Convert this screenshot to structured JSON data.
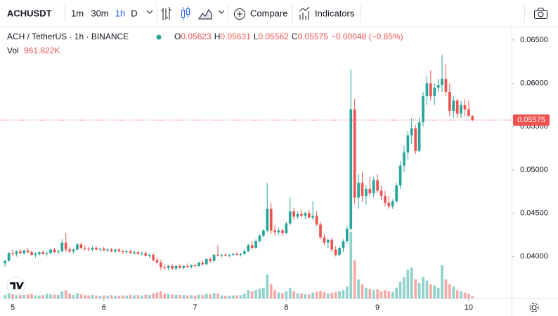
{
  "toolbar": {
    "symbol": "ACHUSDT",
    "intervals": [
      "1m",
      "30m",
      "1h",
      "D"
    ],
    "active_interval": "1h",
    "compare": "Compare",
    "indicators": "Indicators"
  },
  "legend": {
    "title": "ACH / TetherUS · 1h · BINANCE",
    "ohlc": [
      {
        "key": "O",
        "value": "0.05623"
      },
      {
        "key": "H",
        "value": "0.05631"
      },
      {
        "key": "L",
        "value": "0.05562"
      },
      {
        "key": "C",
        "value": "0.05575"
      }
    ],
    "change": "−0.00048 (−0.85%)",
    "vol_label": "Vol",
    "vol_value": "961.822K"
  },
  "last_price_label": "0.05575",
  "chart_data": {
    "type": "candlestick",
    "up_color": "#26a69a",
    "down_color": "#ef5350",
    "grid": false,
    "ylim": [
      0.03516,
      0.06645
    ],
    "yticks": [
      {
        "value": 0.04,
        "label": "0.04000"
      },
      {
        "value": 0.045,
        "label": "0.04500"
      },
      {
        "value": 0.05,
        "label": "0.05000"
      },
      {
        "value": 0.055,
        "label": "0.05500"
      },
      {
        "value": 0.06,
        "label": "0.06000"
      },
      {
        "value": 0.065,
        "label": "0.06500"
      }
    ],
    "xlim": [
      -1.33,
      133.3
    ],
    "xticks": [
      {
        "value": 2,
        "label": "5"
      },
      {
        "value": 26,
        "label": "6"
      },
      {
        "value": 50,
        "label": "7"
      },
      {
        "value": 74,
        "label": "8"
      },
      {
        "value": 98,
        "label": "9"
      },
      {
        "value": 122,
        "label": "10"
      }
    ],
    "candles": [
      [
        0.0392,
        0.0396,
        0.0388,
        0.0395,
        1500000
      ],
      [
        0.0395,
        0.0405,
        0.0394,
        0.0404,
        2200000
      ],
      [
        0.0404,
        0.0408,
        0.0401,
        0.0403,
        1800000
      ],
      [
        0.0403,
        0.0407,
        0.04,
        0.0406,
        1600000
      ],
      [
        0.0406,
        0.0409,
        0.0403,
        0.0404,
        1400000
      ],
      [
        0.0404,
        0.0408,
        0.0402,
        0.0407,
        1500000
      ],
      [
        0.0407,
        0.041,
        0.0404,
        0.0405,
        1700000
      ],
      [
        0.0405,
        0.0407,
        0.0401,
        0.0402,
        1900000
      ],
      [
        0.0402,
        0.0405,
        0.0399,
        0.0403,
        1300000
      ],
      [
        0.0403,
        0.0406,
        0.0401,
        0.0405,
        1200000
      ],
      [
        0.0405,
        0.0407,
        0.0402,
        0.0403,
        1400000
      ],
      [
        0.0403,
        0.0406,
        0.04,
        0.0404,
        2000000
      ],
      [
        0.0404,
        0.0409,
        0.0403,
        0.0408,
        1800000
      ],
      [
        0.0408,
        0.041,
        0.0404,
        0.0405,
        1600000
      ],
      [
        0.0405,
        0.0408,
        0.0403,
        0.0406,
        1500000
      ],
      [
        0.0406,
        0.042,
        0.0405,
        0.0416,
        3000000
      ],
      [
        0.0416,
        0.0427,
        0.0405,
        0.0408,
        3500000
      ],
      [
        0.0408,
        0.0411,
        0.0404,
        0.0406,
        2000000
      ],
      [
        0.0406,
        0.0409,
        0.0403,
        0.0408,
        1500000
      ],
      [
        0.0408,
        0.0416,
        0.0407,
        0.0414,
        2200000
      ],
      [
        0.0414,
        0.0416,
        0.0408,
        0.041,
        1800000
      ],
      [
        0.041,
        0.0413,
        0.0407,
        0.0409,
        1400000
      ],
      [
        0.0409,
        0.0411,
        0.0406,
        0.0408,
        1300000
      ],
      [
        0.0408,
        0.0412,
        0.0406,
        0.041,
        1500000
      ],
      [
        0.041,
        0.0412,
        0.0407,
        0.0408,
        1200000
      ],
      [
        0.0408,
        0.041,
        0.0405,
        0.0409,
        1100000
      ],
      [
        0.0409,
        0.0411,
        0.0406,
        0.0407,
        1300000
      ],
      [
        0.0407,
        0.041,
        0.0405,
        0.0408,
        1200000
      ],
      [
        0.0408,
        0.041,
        0.0405,
        0.0406,
        1400000
      ],
      [
        0.0406,
        0.0409,
        0.0404,
        0.0408,
        1200000
      ],
      [
        0.0408,
        0.041,
        0.0405,
        0.0406,
        1100000
      ],
      [
        0.0406,
        0.0408,
        0.0403,
        0.0405,
        1300000
      ],
      [
        0.0405,
        0.0408,
        0.0403,
        0.0406,
        1200000
      ],
      [
        0.0406,
        0.0408,
        0.0403,
        0.0404,
        1500000
      ],
      [
        0.0404,
        0.0407,
        0.0402,
        0.0405,
        1300000
      ],
      [
        0.0405,
        0.0407,
        0.0402,
        0.0403,
        1400000
      ],
      [
        0.0403,
        0.0406,
        0.0401,
        0.0404,
        1200000
      ],
      [
        0.0404,
        0.0406,
        0.04,
        0.0401,
        1600000
      ],
      [
        0.0401,
        0.0404,
        0.0398,
        0.0402,
        1500000
      ],
      [
        0.0402,
        0.0404,
        0.0394,
        0.0396,
        2200000
      ],
      [
        0.0396,
        0.0399,
        0.0392,
        0.0393,
        2500000
      ],
      [
        0.0393,
        0.0396,
        0.0384,
        0.0388,
        3000000
      ],
      [
        0.0388,
        0.0391,
        0.0385,
        0.0387,
        2000000
      ],
      [
        0.0387,
        0.039,
        0.0384,
        0.0389,
        1800000
      ],
      [
        0.0389,
        0.0391,
        0.0385,
        0.0386,
        1700000
      ],
      [
        0.0386,
        0.039,
        0.0384,
        0.0389,
        1600000
      ],
      [
        0.0389,
        0.0391,
        0.0386,
        0.0387,
        1500000
      ],
      [
        0.0387,
        0.039,
        0.0385,
        0.0389,
        1400000
      ],
      [
        0.0389,
        0.0392,
        0.0387,
        0.0388,
        1300000
      ],
      [
        0.0388,
        0.0391,
        0.0386,
        0.039,
        1400000
      ],
      [
        0.039,
        0.0392,
        0.0387,
        0.0389,
        1200000
      ],
      [
        0.0389,
        0.0394,
        0.0388,
        0.0393,
        1600000
      ],
      [
        0.0393,
        0.0395,
        0.0389,
        0.0391,
        1500000
      ],
      [
        0.0391,
        0.0398,
        0.039,
        0.0397,
        2000000
      ],
      [
        0.0397,
        0.0399,
        0.0393,
        0.0395,
        1700000
      ],
      [
        0.0395,
        0.0403,
        0.0394,
        0.0402,
        2300000
      ],
      [
        0.0402,
        0.0413,
        0.04,
        0.0401,
        2000000
      ],
      [
        0.0401,
        0.0403,
        0.0399,
        0.0402,
        1300000
      ],
      [
        0.0402,
        0.0404,
        0.04,
        0.0401,
        1200000
      ],
      [
        0.0401,
        0.0403,
        0.0399,
        0.0402,
        1100000
      ],
      [
        0.0402,
        0.0404,
        0.04,
        0.0403,
        1200000
      ],
      [
        0.0403,
        0.0405,
        0.0401,
        0.0402,
        1300000
      ],
      [
        0.0402,
        0.0404,
        0.04,
        0.0403,
        1400000
      ],
      [
        0.0403,
        0.0408,
        0.0402,
        0.0406,
        2000000
      ],
      [
        0.0406,
        0.0415,
        0.0405,
        0.0413,
        3500000
      ],
      [
        0.0413,
        0.0418,
        0.0408,
        0.041,
        3000000
      ],
      [
        0.041,
        0.042,
        0.0409,
        0.0418,
        3500000
      ],
      [
        0.0418,
        0.0426,
        0.0416,
        0.0424,
        4000000
      ],
      [
        0.0424,
        0.0432,
        0.0422,
        0.043,
        4500000
      ],
      [
        0.043,
        0.0485,
        0.0428,
        0.0455,
        10000000
      ],
      [
        0.0455,
        0.0462,
        0.0426,
        0.043,
        6000000
      ],
      [
        0.043,
        0.0436,
        0.0424,
        0.0428,
        3500000
      ],
      [
        0.0428,
        0.0433,
        0.0425,
        0.043,
        2500000
      ],
      [
        0.043,
        0.0432,
        0.0424,
        0.0427,
        2200000
      ],
      [
        0.0427,
        0.044,
        0.0426,
        0.0438,
        3000000
      ],
      [
        0.0438,
        0.0468,
        0.0436,
        0.0452,
        4500000
      ],
      [
        0.0452,
        0.0456,
        0.0442,
        0.0446,
        3000000
      ],
      [
        0.0446,
        0.0452,
        0.0443,
        0.0449,
        2200000
      ],
      [
        0.0449,
        0.0454,
        0.0445,
        0.0447,
        2000000
      ],
      [
        0.0447,
        0.0452,
        0.0443,
        0.045,
        1800000
      ],
      [
        0.045,
        0.0454,
        0.0444,
        0.0445,
        1700000
      ],
      [
        0.0445,
        0.0464,
        0.0442,
        0.0447,
        2500000
      ],
      [
        0.0447,
        0.0452,
        0.0435,
        0.0437,
        2800000
      ],
      [
        0.0437,
        0.044,
        0.042,
        0.0422,
        3200000
      ],
      [
        0.0422,
        0.0426,
        0.0413,
        0.0416,
        2600000
      ],
      [
        0.0416,
        0.0421,
        0.041,
        0.0419,
        2000000
      ],
      [
        0.0419,
        0.0422,
        0.0405,
        0.0408,
        2400000
      ],
      [
        0.0408,
        0.0412,
        0.04,
        0.0402,
        2800000
      ],
      [
        0.0402,
        0.0412,
        0.04,
        0.041,
        3000000
      ],
      [
        0.041,
        0.042,
        0.0405,
        0.0418,
        3500000
      ],
      [
        0.0418,
        0.0435,
        0.0415,
        0.0432,
        5000000
      ],
      [
        0.0432,
        0.0616,
        0.043,
        0.057,
        28000000
      ],
      [
        0.057,
        0.0582,
        0.046,
        0.0468,
        16000000
      ],
      [
        0.0468,
        0.0495,
        0.0455,
        0.0485,
        8000000
      ],
      [
        0.0485,
        0.0498,
        0.0463,
        0.047,
        6000000
      ],
      [
        0.047,
        0.0482,
        0.046,
        0.0478,
        4500000
      ],
      [
        0.0478,
        0.0492,
        0.047,
        0.0473,
        4000000
      ],
      [
        0.0473,
        0.0492,
        0.0468,
        0.0488,
        3500000
      ],
      [
        0.0488,
        0.0495,
        0.0473,
        0.0476,
        3800000
      ],
      [
        0.0476,
        0.0482,
        0.0465,
        0.047,
        3000000
      ],
      [
        0.047,
        0.0476,
        0.0458,
        0.0462,
        3500000
      ],
      [
        0.0462,
        0.047,
        0.0455,
        0.0458,
        3000000
      ],
      [
        0.0458,
        0.0466,
        0.0455,
        0.0464,
        2800000
      ],
      [
        0.0464,
        0.0485,
        0.0462,
        0.0482,
        4500000
      ],
      [
        0.0482,
        0.051,
        0.0478,
        0.0505,
        7000000
      ],
      [
        0.0505,
        0.0528,
        0.0498,
        0.052,
        9000000
      ],
      [
        0.052,
        0.0545,
        0.0512,
        0.054,
        12000000
      ],
      [
        0.054,
        0.056,
        0.053,
        0.0548,
        13000000
      ],
      [
        0.0548,
        0.0552,
        0.0518,
        0.0522,
        8000000
      ],
      [
        0.0522,
        0.056,
        0.052,
        0.0555,
        6500000
      ],
      [
        0.0555,
        0.059,
        0.055,
        0.0585,
        9000000
      ],
      [
        0.0585,
        0.0608,
        0.0575,
        0.06,
        7500000
      ],
      [
        0.06,
        0.0615,
        0.058,
        0.0585,
        6000000
      ],
      [
        0.0585,
        0.06,
        0.0575,
        0.0595,
        5500000
      ],
      [
        0.0595,
        0.0605,
        0.059,
        0.0598,
        4500000
      ],
      [
        0.0598,
        0.0633,
        0.059,
        0.0605,
        14000000
      ],
      [
        0.0605,
        0.0622,
        0.0585,
        0.059,
        8000000
      ],
      [
        0.059,
        0.06,
        0.0562,
        0.0568,
        6000000
      ],
      [
        0.0568,
        0.0585,
        0.056,
        0.058,
        5000000
      ],
      [
        0.058,
        0.0582,
        0.056,
        0.0565,
        3500000
      ],
      [
        0.0565,
        0.058,
        0.056,
        0.0575,
        3000000
      ],
      [
        0.0575,
        0.0582,
        0.0562,
        0.057,
        2500000
      ],
      [
        0.057,
        0.058,
        0.0562,
        0.0562,
        2000000
      ],
      [
        0.05623,
        0.05631,
        0.05562,
        0.05575,
        961822
      ]
    ]
  }
}
